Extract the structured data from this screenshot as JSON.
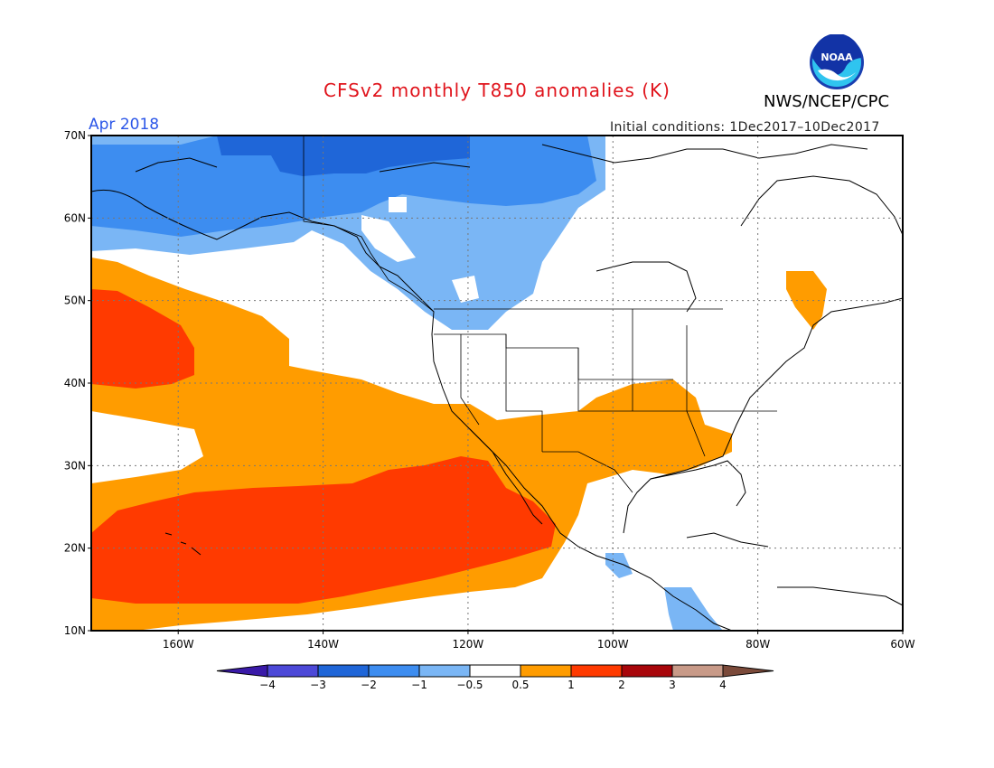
{
  "title": "CFSv2 monthly T850 anomalies (K)",
  "agency": "NWS/NCEP/CPC",
  "logo_text": "NOAA",
  "valid_month": "Apr 2018",
  "initial_conditions": "Initial conditions: 1Dec2017–10Dec2017",
  "map": {
    "lon_range": [
      -172,
      -60
    ],
    "lat_range": [
      10,
      70
    ],
    "lat_labels": [
      "70N",
      "60N",
      "50N",
      "40N",
      "30N",
      "20N",
      "10N"
    ],
    "lon_labels": [
      "160W",
      "140W",
      "120W",
      "100W",
      "80W",
      "60W"
    ],
    "grid": true
  },
  "colorbar": {
    "tick_labels": [
      "−4",
      "−3",
      "−2",
      "−1",
      "−0.5",
      "0.5",
      "1",
      "2",
      "3",
      "4"
    ],
    "colors": [
      "#3a1aa8",
      "#4d49d8",
      "#1f66d8",
      "#3d8df0",
      "#7ab6f5",
      "#ffffff",
      "#ff9c00",
      "#ff3a00",
      "#a8060b",
      "#c89a88",
      "#7b4a3a"
    ]
  },
  "anomaly_regions": [
    {
      "category": "-2 to -3",
      "description": "northern Alaska / Yukon"
    },
    {
      "category": "-1 to -2",
      "description": "Alaska, NW Canada, Bering Sea"
    },
    {
      "category": "-0.5 to -1",
      "description": "western Canada, Gulf of Alaska coast, Central America"
    },
    {
      "category": "0.5 to 1",
      "description": "eastern Pacific, SW and southern United States, Mexico, Labrador"
    },
    {
      "category": "1 to 2",
      "description": "subtropical North Pacific near Hawaii, Gulf of Alaska west"
    }
  ]
}
